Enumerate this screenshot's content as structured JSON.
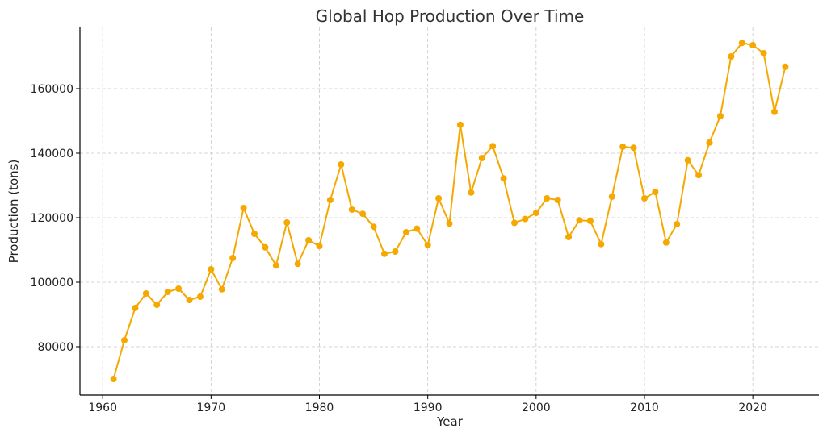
{
  "chart_data": {
    "type": "line",
    "title": "Global Hop Production Over Time",
    "xlabel": "Year",
    "ylabel": "Production (tons)",
    "xlim": [
      1957.9,
      2026.1
    ],
    "ylim": [
      65000,
      179000
    ],
    "x_ticks": [
      1960,
      1970,
      1980,
      1990,
      2000,
      2010,
      2020
    ],
    "y_ticks": [
      80000,
      100000,
      120000,
      140000,
      160000
    ],
    "grid": true,
    "color": "#f5a800",
    "x": [
      1961,
      1962,
      1963,
      1964,
      1965,
      1966,
      1967,
      1968,
      1969,
      1970,
      1971,
      1972,
      1973,
      1974,
      1975,
      1976,
      1977,
      1978,
      1979,
      1980,
      1981,
      1982,
      1983,
      1984,
      1985,
      1986,
      1987,
      1988,
      1989,
      1990,
      1991,
      1992,
      1993,
      1994,
      1995,
      1996,
      1997,
      1998,
      1999,
      2000,
      2001,
      2002,
      2003,
      2004,
      2005,
      2006,
      2007,
      2008,
      2009,
      2010,
      2011,
      2012,
      2013,
      2014,
      2015,
      2016,
      2017,
      2018,
      2019,
      2020,
      2021,
      2022,
      2023
    ],
    "values": [
      70000,
      82000,
      92000,
      96500,
      93000,
      97000,
      98000,
      94500,
      95500,
      104000,
      97800,
      107500,
      123000,
      115000,
      110800,
      105200,
      118500,
      105700,
      113000,
      111200,
      125500,
      136500,
      122500,
      121200,
      117200,
      108800,
      109500,
      115500,
      116600,
      111500,
      126000,
      118200,
      148800,
      127800,
      138500,
      142200,
      132200,
      118400,
      119600,
      121500,
      126000,
      125500,
      114000,
      119200,
      119000,
      111800,
      126500,
      142000,
      141700,
      126000,
      128000,
      112300,
      118000,
      137800,
      133200,
      143300,
      151500,
      170000,
      174200,
      173500,
      171000,
      152800,
      166800
    ]
  }
}
